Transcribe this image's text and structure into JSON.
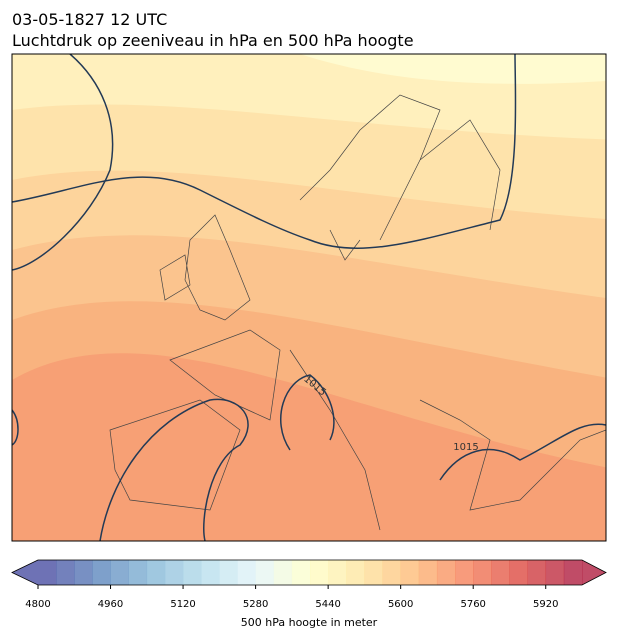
{
  "chart_data": {
    "type": "map",
    "title": "03-05-1827 12 UTC",
    "subtitle": "Luchtdruk op zeeniveau in hPa en 500 hPa hoogte",
    "isobar_labels": [
      1015,
      1015
    ],
    "colorbar": {
      "label": "500 hPa hoogte in meter",
      "lim": [
        4800,
        6000
      ],
      "levels": [
        4800,
        4840,
        4880,
        4920,
        4960,
        5000,
        5040,
        5080,
        5120,
        5160,
        5200,
        5240,
        5280,
        5320,
        5360,
        5400,
        5440,
        5480,
        5520,
        5560,
        5600,
        5640,
        5680,
        5720,
        5760,
        5800,
        5840,
        5880,
        5920,
        5960,
        6000
      ],
      "ticks": [
        4800,
        4960,
        5120,
        5280,
        5440,
        5600,
        5760,
        5920
      ],
      "colormap": [
        "#313695",
        "#4575b4",
        "#74add1",
        "#abd9e9",
        "#e0f3f8",
        "#ffffbf",
        "#fee090",
        "#fdae61",
        "#f46d43",
        "#d73027",
        "#a50026"
      ],
      "alpha": 0.7
    }
  }
}
